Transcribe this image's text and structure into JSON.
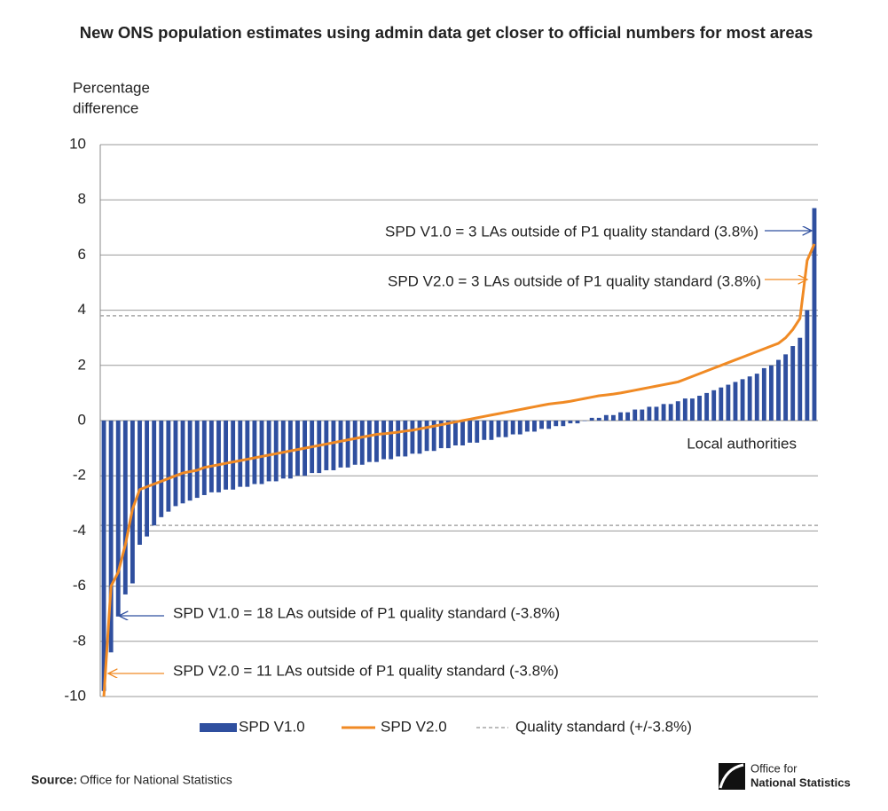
{
  "chart_data": {
    "type": "bar_line",
    "title": "New ONS population estimates using admin data get closer to official numbers for most areas",
    "ylabel": [
      "Percentage",
      "difference"
    ],
    "xlabel": "Local authorities",
    "categories": [
      null,
      null,
      null,
      null,
      null,
      null,
      null,
      null,
      null,
      null,
      null,
      null,
      null,
      null,
      null,
      null,
      null,
      null,
      null,
      null,
      null,
      null,
      null,
      null,
      null,
      null,
      null,
      null,
      null,
      null,
      null,
      null,
      null,
      null,
      null,
      null,
      null,
      null,
      null,
      null,
      null,
      null,
      null,
      null,
      null,
      null,
      null,
      null,
      null,
      null,
      null,
      null,
      null,
      null,
      null,
      null,
      null,
      null,
      null,
      null,
      null,
      null,
      null,
      null,
      null,
      null,
      null,
      null,
      null,
      null,
      null,
      null,
      null,
      null,
      null,
      null,
      null,
      null,
      null,
      null,
      null,
      null,
      null,
      null,
      null,
      null,
      null,
      null,
      null,
      null,
      null,
      null,
      null,
      null,
      null,
      null,
      null,
      null,
      null,
      null
    ],
    "series": [
      {
        "name": "SPD V1.0",
        "type": "bar",
        "color": "#2f4f9f",
        "values": [
          -9.8,
          -8.4,
          -7.1,
          -6.3,
          -5.9,
          -4.5,
          -4.2,
          -3.8,
          -3.5,
          -3.3,
          -3.1,
          -3.0,
          -2.9,
          -2.8,
          -2.7,
          -2.6,
          -2.6,
          -2.5,
          -2.5,
          -2.4,
          -2.4,
          -2.3,
          -2.3,
          -2.2,
          -2.2,
          -2.1,
          -2.1,
          -2.0,
          -2.0,
          -1.9,
          -1.9,
          -1.8,
          -1.8,
          -1.7,
          -1.7,
          -1.6,
          -1.6,
          -1.5,
          -1.5,
          -1.4,
          -1.4,
          -1.3,
          -1.3,
          -1.2,
          -1.2,
          -1.1,
          -1.1,
          -1.0,
          -1.0,
          -0.9,
          -0.9,
          -0.8,
          -0.8,
          -0.7,
          -0.7,
          -0.6,
          -0.6,
          -0.5,
          -0.5,
          -0.4,
          -0.4,
          -0.3,
          -0.3,
          -0.2,
          -0.2,
          -0.1,
          -0.1,
          0.0,
          0.1,
          0.1,
          0.2,
          0.2,
          0.3,
          0.3,
          0.4,
          0.4,
          0.5,
          0.5,
          0.6,
          0.6,
          0.7,
          0.8,
          0.8,
          0.9,
          1.0,
          1.1,
          1.2,
          1.3,
          1.4,
          1.5,
          1.6,
          1.7,
          1.9,
          2.0,
          2.2,
          2.4,
          2.7,
          3.0,
          4.0,
          7.7
        ]
      },
      {
        "name": "SPD V2.0",
        "type": "line",
        "color": "#f08a24",
        "values": [
          -10,
          -6.0,
          -5.5,
          -4.5,
          -3.2,
          -2.5,
          -2.4,
          -2.3,
          -2.2,
          -2.1,
          -2.0,
          -1.9,
          -1.85,
          -1.8,
          -1.7,
          -1.65,
          -1.6,
          -1.55,
          -1.5,
          -1.45,
          -1.4,
          -1.35,
          -1.3,
          -1.25,
          -1.2,
          -1.15,
          -1.1,
          -1.05,
          -1.0,
          -0.95,
          -0.9,
          -0.85,
          -0.8,
          -0.75,
          -0.7,
          -0.65,
          -0.6,
          -0.55,
          -0.5,
          -0.48,
          -0.45,
          -0.42,
          -0.38,
          -0.35,
          -0.3,
          -0.25,
          -0.2,
          -0.15,
          -0.1,
          -0.05,
          0.0,
          0.05,
          0.1,
          0.15,
          0.2,
          0.25,
          0.3,
          0.35,
          0.4,
          0.45,
          0.5,
          0.55,
          0.6,
          0.63,
          0.66,
          0.7,
          0.75,
          0.8,
          0.85,
          0.9,
          0.93,
          0.96,
          1.0,
          1.05,
          1.1,
          1.15,
          1.2,
          1.25,
          1.3,
          1.35,
          1.4,
          1.5,
          1.6,
          1.7,
          1.8,
          1.9,
          2.0,
          2.1,
          2.2,
          2.3,
          2.4,
          2.5,
          2.6,
          2.7,
          2.8,
          3.0,
          3.3,
          3.7,
          5.8,
          6.4
        ]
      }
    ],
    "quality_standard": {
      "name": "Quality standard (+/-3.8%)",
      "color": "#a6a6a6",
      "values": [
        3.8,
        -3.8
      ]
    },
    "ylim": [
      -10,
      10
    ],
    "yticks": [
      -10,
      -8,
      -6,
      -4,
      -2,
      0,
      2,
      4,
      6,
      8,
      10
    ],
    "grid": true,
    "annotations": [
      {
        "text": "SPD V1.0 = 3 LAs outside of P1 quality standard (3.8%)",
        "color": "#2f4f9f"
      },
      {
        "text": "SPD V2.0 = 3 LAs outside of P1 quality standard (3.8%)",
        "color": "#f08a24"
      },
      {
        "text": "SPD V1.0 = 18 LAs outside of P1 quality standard (-3.8%)",
        "color": "#2f4f9f"
      },
      {
        "text": "SPD V2.0 = 11 LAs outside of P1 quality standard (-3.8%)",
        "color": "#f08a24"
      }
    ]
  },
  "source": {
    "label": "Source:",
    "text": "Office for National Statistics"
  },
  "logo": [
    "Office for",
    "National Statistics"
  ]
}
